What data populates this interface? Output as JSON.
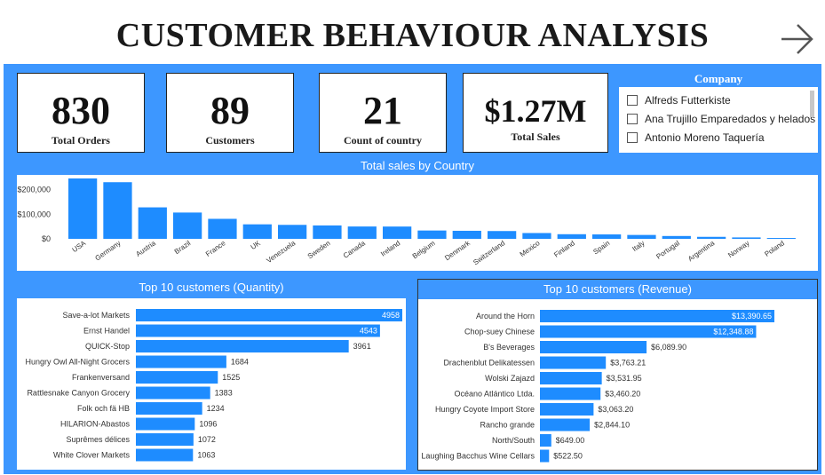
{
  "header": {
    "title": "CUSTOMER BEHAVIOUR ANALYSIS",
    "nav_icon": "arrow-right-icon"
  },
  "kpis": [
    {
      "value": "830",
      "label": "Total Orders"
    },
    {
      "value": "89",
      "label": "Customers"
    },
    {
      "value": "21",
      "label": "Count of country"
    },
    {
      "value": "$1.27M",
      "label": "Total Sales"
    }
  ],
  "slicer": {
    "title": "Company",
    "items": [
      "Alfreds Futterkiste",
      "Ana Trujillo Emparedados y helados",
      "Antonio Moreno Taquería"
    ]
  },
  "colors": {
    "accent": "#3d97ff",
    "bar": "#1e8cff"
  },
  "chart_data": [
    {
      "type": "bar",
      "title": "Total sales by Country",
      "categories": [
        "USA",
        "Germany",
        "Austria",
        "Brazil",
        "France",
        "UK",
        "Venezuela",
        "Sweden",
        "Canada",
        "Ireland",
        "Belgium",
        "Denmark",
        "Switzerland",
        "Mexico",
        "Finland",
        "Spain",
        "Italy",
        "Portugal",
        "Argentina",
        "Norway",
        "Poland"
      ],
      "values": [
        245585,
        230285,
        128004,
        106925,
        81358,
        58971,
        56810,
        54495,
        50196,
        49980,
        33825,
        32661,
        31692,
        23582,
        18810,
        17983,
        15770,
        11473,
        8119,
        5735,
        3532
      ],
      "yticks": [
        0,
        100000,
        200000
      ],
      "ytick_labels": [
        "$0",
        "$100,000",
        "$200,000"
      ],
      "ylim": [
        0,
        260000
      ]
    },
    {
      "type": "bar",
      "orientation": "horizontal",
      "title": "Top 10 customers (Quantity)",
      "categories": [
        "Save-a-lot Markets",
        "Ernst Handel",
        "QUICK-Stop",
        "Hungry Owl All-Night Grocers",
        "Frankenversand",
        "Rattlesnake Canyon Grocery",
        "Folk och fä HB",
        "HILARION-Abastos",
        "Suprêmes délices",
        "White Clover Markets"
      ],
      "values": [
        4958,
        4543,
        3961,
        1684,
        1525,
        1383,
        1234,
        1096,
        1072,
        1063
      ],
      "labels": [
        "4958",
        "4543",
        "3961",
        "1684",
        "1525",
        "1383",
        "1234",
        "1096",
        "1072",
        "1063"
      ]
    },
    {
      "type": "bar",
      "orientation": "horizontal",
      "title": "Top 10 customers (Revenue)",
      "categories": [
        "Around the Horn",
        "Chop-suey Chinese",
        "B's Beverages",
        "Drachenblut Delikatessen",
        "Wolski Zajazd",
        "Océano Atlántico Ltda.",
        "Hungry Coyote Import Store",
        "Rancho grande",
        "North/South",
        "Laughing Bacchus Wine Cellars"
      ],
      "values": [
        13390.65,
        12348.88,
        6089.9,
        3763.21,
        3531.95,
        3460.2,
        3063.2,
        2844.1,
        649.0,
        522.5
      ],
      "labels": [
        "$13,390.65",
        "$12,348.88",
        "$6,089.90",
        "$3,763.21",
        "$3,531.95",
        "$3,460.20",
        "$3,063.20",
        "$2,844.10",
        "$649.00",
        "$522.50"
      ]
    }
  ]
}
